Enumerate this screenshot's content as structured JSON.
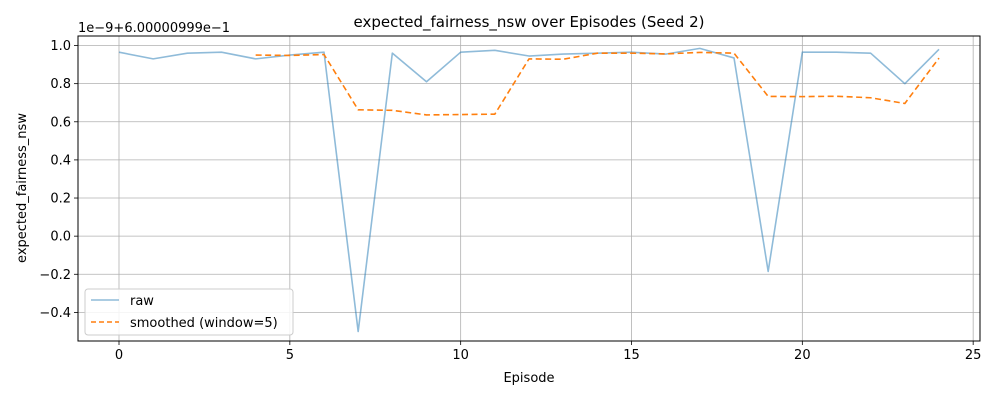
{
  "chart_data": {
    "type": "line",
    "title": "expected_fairness_nsw over Episodes (Seed 2)",
    "xlabel": "Episode",
    "ylabel": "expected_fairness_nsw",
    "offset_label": "1e−9+6.00000999e−1",
    "xlim": [
      -1.2,
      25.2
    ],
    "ylim": [
      -0.55,
      1.05
    ],
    "x_ticks": [
      0,
      5,
      10,
      15,
      20,
      25
    ],
    "y_ticks": [
      -0.4,
      -0.2,
      0.0,
      0.2,
      0.4,
      0.6,
      0.8,
      1.0
    ],
    "grid": true,
    "legend_position": "lower-left",
    "series": [
      {
        "name": "raw",
        "color": "#1f77b4",
        "style": "solid",
        "x": [
          0,
          1,
          2,
          3,
          4,
          5,
          6,
          7,
          8,
          9,
          10,
          11,
          12,
          13,
          14,
          15,
          16,
          17,
          18,
          19,
          20,
          21,
          22,
          23,
          24
        ],
        "values": [
          0.965,
          0.93,
          0.96,
          0.965,
          0.93,
          0.95,
          0.965,
          -0.5,
          0.96,
          0.81,
          0.965,
          0.975,
          0.945,
          0.955,
          0.96,
          0.965,
          0.955,
          0.985,
          0.935,
          -0.185,
          0.965,
          0.965,
          0.96,
          0.8,
          0.98
        ]
      },
      {
        "name": "smoothed (window=5)",
        "color": "#ff7f0e",
        "style": "dashed",
        "x": [
          4,
          5,
          6,
          7,
          8,
          9,
          10,
          11,
          12,
          13,
          14,
          15,
          16,
          17,
          18,
          19,
          20,
          21,
          22,
          23,
          24
        ],
        "values": [
          0.95,
          0.948,
          0.953,
          0.663,
          0.66,
          0.636,
          0.638,
          0.64,
          0.93,
          0.928,
          0.96,
          0.96,
          0.956,
          0.964,
          0.96,
          0.733,
          0.732,
          0.734,
          0.726,
          0.696,
          0.934
        ]
      }
    ]
  }
}
